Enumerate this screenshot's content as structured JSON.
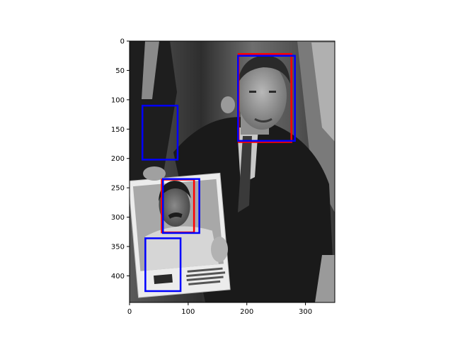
{
  "image": {
    "description_free": true,
    "width_units": 350,
    "height_units": 450,
    "colormap": "gray"
  },
  "axes": {
    "x_ticks": [
      0,
      100,
      200,
      300
    ],
    "y_ticks": [
      0,
      50,
      100,
      150,
      200,
      250,
      300,
      350,
      400
    ],
    "x_tick_labels": [
      "0",
      "100",
      "200",
      "300"
    ],
    "y_tick_labels": [
      "0",
      "50",
      "100",
      "150",
      "200",
      "250",
      "300",
      "350",
      "400"
    ],
    "xlim": [
      0,
      350
    ],
    "ylim": [
      450,
      0
    ]
  },
  "boxes": {
    "colors": {
      "red": "#ff0000",
      "blue": "#0000ff"
    },
    "red": [
      {
        "x": 186,
        "y": 22,
        "w": 90,
        "h": 150
      },
      {
        "x": 55,
        "y": 236,
        "w": 55,
        "h": 90
      }
    ],
    "blue": [
      {
        "x": 185,
        "y": 25,
        "w": 97,
        "h": 145
      },
      {
        "x": 22,
        "y": 110,
        "w": 60,
        "h": 92
      },
      {
        "x": 57,
        "y": 235,
        "w": 62,
        "h": 92
      },
      {
        "x": 27,
        "y": 336,
        "w": 60,
        "h": 90
      }
    ]
  }
}
